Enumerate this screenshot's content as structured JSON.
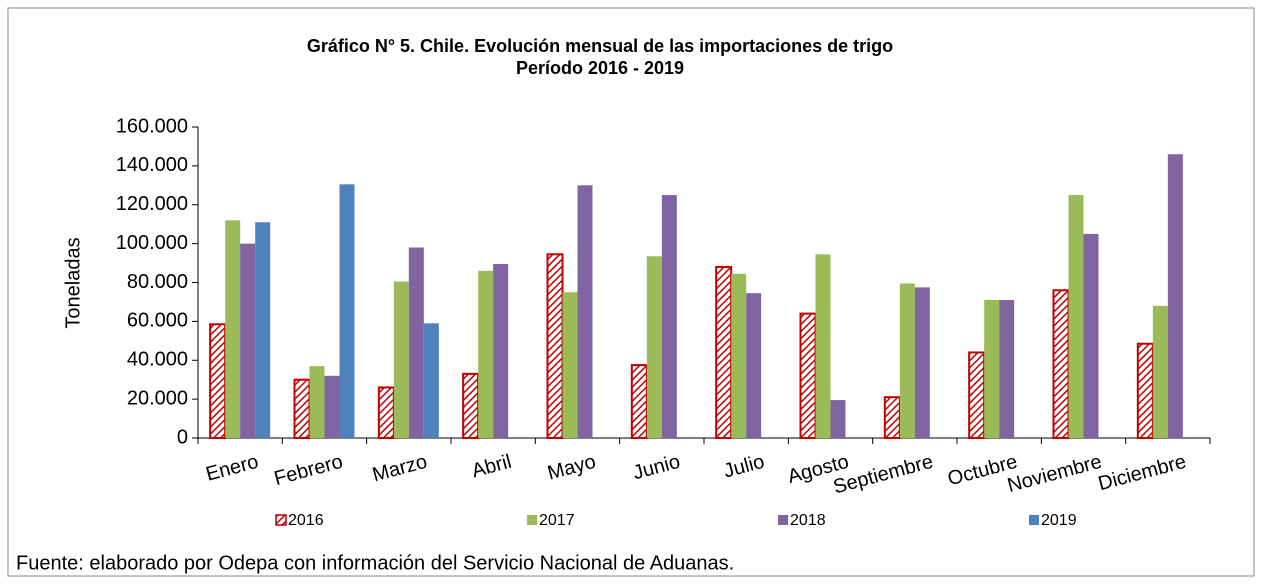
{
  "chart_data": {
    "type": "bar",
    "title": "Gráfico N° 5. Chile. Evolución mensual de las importaciones de trigo",
    "subtitle": "Período  2016 - 2019",
    "y_label": "Toneladas",
    "source": "Fuente: elaborado por Odepa con información del Servicio Nacional de Aduanas.",
    "categories": [
      "Enero",
      "Febrero",
      "Marzo",
      "Abril",
      "Mayo",
      "Junio",
      "Julio",
      "Agosto",
      "Septiembre",
      "Octubre",
      "Noviembre",
      "Diciembre"
    ],
    "series": [
      {
        "name": "2016",
        "color": "#c00000",
        "hatch": true,
        "values": [
          58500,
          30000,
          26000,
          33000,
          94500,
          37500,
          88000,
          64000,
          21000,
          44000,
          76000,
          48500
        ]
      },
      {
        "name": "2017",
        "color": "#9bbb59",
        "values": [
          112000,
          37000,
          80500,
          86000,
          75000,
          93500,
          84500,
          94500,
          79500,
          71000,
          125000,
          68000
        ]
      },
      {
        "name": "2018",
        "color": "#8064a2",
        "values": [
          100000,
          32000,
          98000,
          89500,
          130000,
          125000,
          74500,
          19500,
          77500,
          71000,
          105000,
          146000
        ]
      },
      {
        "name": "2019",
        "color": "#4f81bd",
        "values": [
          111000,
          130500,
          59000,
          null,
          null,
          null,
          null,
          null,
          null,
          null,
          null,
          null
        ]
      }
    ],
    "ylim": [
      0,
      160000
    ],
    "yticks": [
      0,
      {
        "value": 20000,
        "label": "20.000"
      },
      {
        "value": 40000,
        "label": "40.000"
      },
      {
        "value": 60000,
        "label": "60.000"
      },
      {
        "value": 80000,
        "label": "80.000"
      },
      {
        "value": 100000,
        "label": "100.000"
      },
      {
        "value": 120000,
        "label": "120.000"
      },
      {
        "value": 140000,
        "label": "140.000"
      },
      {
        "value": 160000,
        "label": "160.000"
      }
    ],
    "legend": "bottom"
  }
}
